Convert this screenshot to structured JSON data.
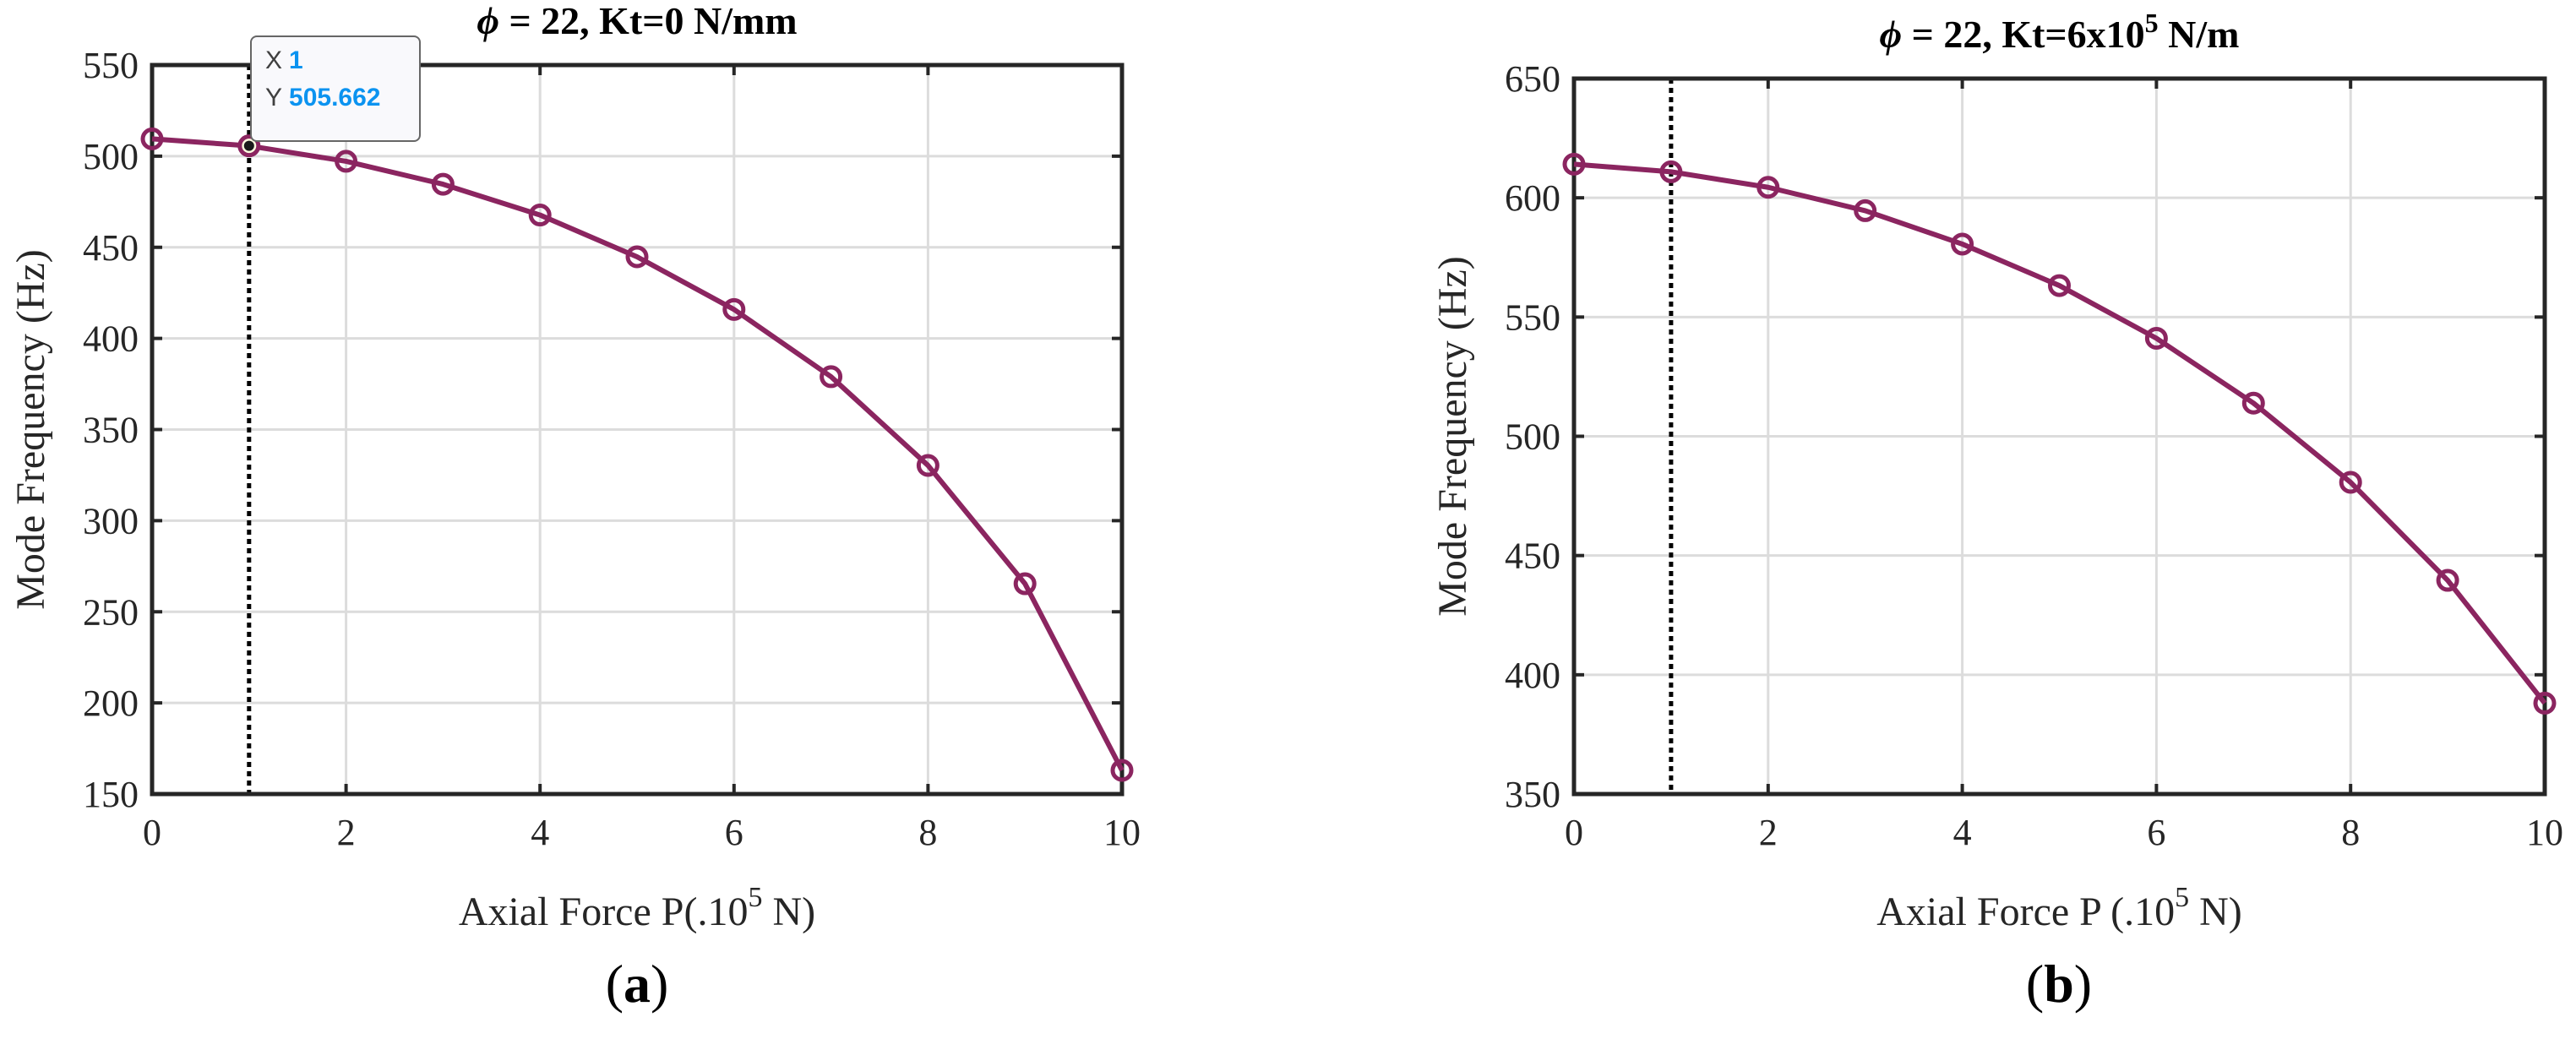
{
  "figure": {
    "panels": [
      {
        "id": "a",
        "caption_letter": "a",
        "title_phi": "ϕ",
        "title_rest": " = 22, Kt=0 N/mm",
        "title_sup": "",
        "title_tail": "",
        "xlabel_pre": "Axial Force P(.10",
        "xlabel_sup": "5",
        "xlabel_post": " N)",
        "ylabel": "Mode Frequency (Hz)",
        "xticks": [
          "0",
          "2",
          "4",
          "6",
          "8",
          "10"
        ],
        "yticks": [
          "150",
          "200",
          "250",
          "300",
          "350",
          "400",
          "450",
          "500",
          "550"
        ],
        "datatip": {
          "x_key": "X",
          "x_value": "1",
          "y_key": "Y",
          "y_value": "505.662"
        }
      },
      {
        "id": "b",
        "caption_letter": "b",
        "title_phi": "ϕ",
        "title_rest": " = 22, Kt=6x10",
        "title_sup": "5",
        "title_tail": " N/m",
        "xlabel_pre": "Axial Force P (.10",
        "xlabel_sup": "5",
        "xlabel_post": " N)",
        "ylabel": "Mode Frequency (Hz)",
        "xticks": [
          "0",
          "2",
          "4",
          "6",
          "8",
          "10"
        ],
        "yticks": [
          "350",
          "400",
          "450",
          "500",
          "550",
          "600",
          "650"
        ]
      }
    ],
    "colors": {
      "series": "#8b2560",
      "grid": "#dcdcdc",
      "axis": "#262626",
      "datatip_value": "#0b93f0",
      "marker_highlight_fill": "#fdfbe0"
    }
  },
  "chart_data": [
    {
      "type": "line",
      "title": "ϕ = 22, Kt=0 N/mm",
      "xlabel": "Axial Force P(.10^5 N)",
      "ylabel": "Mode Frequency (Hz)",
      "x": [
        0,
        1,
        2,
        3,
        4,
        5,
        6,
        7,
        8,
        9,
        10
      ],
      "series": [
        {
          "name": "Mode Frequency",
          "marker": "circle",
          "values": [
            509.5,
            505.662,
            497.2,
            484.6,
            467.7,
            444.8,
            415.9,
            379.0,
            330.3,
            265.4,
            163.0
          ]
        }
      ],
      "xlim": [
        0,
        10
      ],
      "ylim": [
        150,
        550
      ],
      "xticks": [
        0,
        2,
        4,
        6,
        8,
        10
      ],
      "yticks": [
        150,
        200,
        250,
        300,
        350,
        400,
        450,
        500,
        550
      ],
      "grid": true,
      "legend": null,
      "annotations": [
        {
          "type": "vertical-dotted-line",
          "x": 1
        },
        {
          "type": "datatip",
          "x": 1,
          "y": 505.662,
          "text": "X 1 / Y 505.662"
        }
      ],
      "caption": "(a)"
    },
    {
      "type": "line",
      "title": "ϕ = 22, Kt=6x10^5 N/m",
      "xlabel": "Axial Force P (.10^5 N)",
      "ylabel": "Mode Frequency (Hz)",
      "x": [
        0,
        1,
        2,
        3,
        4,
        5,
        6,
        7,
        8,
        9,
        10
      ],
      "series": [
        {
          "name": "Mode Frequency",
          "marker": "circle",
          "values": [
            614.1,
            610.9,
            604.4,
            594.6,
            580.6,
            563.2,
            541.1,
            513.9,
            480.7,
            439.6,
            388.1
          ]
        }
      ],
      "xlim": [
        0,
        10
      ],
      "ylim": [
        350,
        650
      ],
      "xticks": [
        0,
        2,
        4,
        6,
        8,
        10
      ],
      "yticks": [
        350,
        400,
        450,
        500,
        550,
        600,
        650
      ],
      "grid": true,
      "legend": null,
      "annotations": [
        {
          "type": "vertical-dotted-line",
          "x": 1
        }
      ],
      "caption": "(b)"
    }
  ]
}
